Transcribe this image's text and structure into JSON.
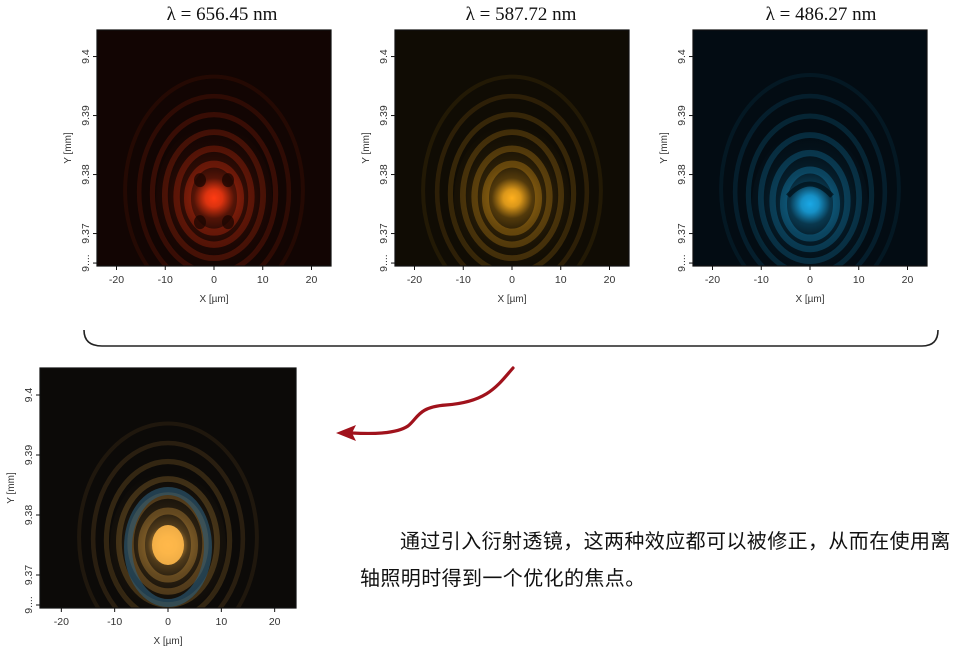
{
  "titles": [
    "λ = 656.45 nm",
    "λ = 587.72 nm",
    "λ = 486.27 nm"
  ],
  "caption": "通过引入衍射透镜，这两种效应都可以被修正，从而在使用离轴照明时得到一个优化的焦点。",
  "colors": {
    "red_channel": "#ff3b12",
    "yellow_channel": "#ffb01e",
    "blue_channel": "#1aa8e6",
    "combined": "#ffb84a",
    "arrow": "#a0121c",
    "bracket": "#222222"
  },
  "chart_data": [
    {
      "type": "heatmap",
      "title": "λ = 656.45 nm",
      "colormap": "black-to-red",
      "xlabel": "X [µm]",
      "ylabel": "Y [mm]",
      "xlim": [
        -24,
        24
      ],
      "ylim": [
        9.3645,
        9.4045
      ],
      "x_ticks": [
        -20,
        -10,
        0,
        10,
        20
      ],
      "x_tick_labels": [
        "-20",
        "-10",
        "0",
        "10",
        "20"
      ],
      "y_ticks": [
        9.365,
        9.37,
        9.38,
        9.39,
        9.4
      ],
      "y_tick_labels": [
        "9....",
        "9.37",
        "9.38",
        "9.39",
        "9.4"
      ],
      "peak": {
        "x": 0,
        "y": 9.376
      }
    },
    {
      "type": "heatmap",
      "title": "λ = 587.72 nm",
      "colormap": "black-to-yellow",
      "xlabel": "X [µm]",
      "ylabel": "Y [mm]",
      "xlim": [
        -24,
        24
      ],
      "ylim": [
        9.3645,
        9.4045
      ],
      "x_ticks": [
        -20,
        -10,
        0,
        10,
        20
      ],
      "x_tick_labels": [
        "-20",
        "-10",
        "0",
        "10",
        "20"
      ],
      "y_ticks": [
        9.365,
        9.37,
        9.38,
        9.39,
        9.4
      ],
      "y_tick_labels": [
        "9....",
        "9.37",
        "9.38",
        "9.39",
        "9.4"
      ],
      "peak": {
        "x": 0,
        "y": 9.376
      }
    },
    {
      "type": "heatmap",
      "title": "λ = 486.27 nm",
      "colormap": "black-to-blue",
      "xlabel": "X [µm]",
      "ylabel": "Y [mm]",
      "xlim": [
        -24,
        24
      ],
      "ylim": [
        9.3645,
        9.4045
      ],
      "x_ticks": [
        -20,
        -10,
        0,
        10,
        20
      ],
      "x_tick_labels": [
        "-20",
        "-10",
        "0",
        "10",
        "20"
      ],
      "y_ticks": [
        9.365,
        9.37,
        9.38,
        9.39,
        9.4
      ],
      "y_tick_labels": [
        "9....",
        "9.37",
        "9.38",
        "9.39",
        "9.4"
      ],
      "peak": {
        "x": 0,
        "y": 9.375
      }
    },
    {
      "type": "heatmap",
      "title": "",
      "colormap": "combined RGB",
      "xlabel": "X [µm]",
      "ylabel": "Y [mm]",
      "xlim": [
        -24,
        24
      ],
      "ylim": [
        9.3645,
        9.4045
      ],
      "x_ticks": [
        -20,
        -10,
        0,
        10,
        20
      ],
      "x_tick_labels": [
        "-20",
        "-10",
        "0",
        "10",
        "20"
      ],
      "y_ticks": [
        9.365,
        9.37,
        9.38,
        9.39,
        9.4
      ],
      "y_tick_labels": [
        "9....",
        "9.37",
        "9.38",
        "9.39",
        "9.4"
      ],
      "peak": {
        "x": 0,
        "y": 9.375
      }
    }
  ]
}
